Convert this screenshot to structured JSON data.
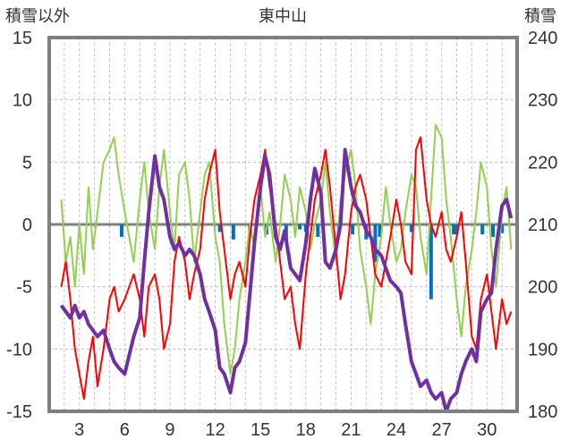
{
  "chart_data": {
    "type": "line",
    "title": "東中山",
    "left_axis_label": "積雪以外",
    "right_axis_label": "積雪",
    "left_ylim": [
      -15,
      15
    ],
    "left_yticks": [
      "15",
      "10",
      "5",
      "0",
      "-5",
      "-10",
      "-15"
    ],
    "right_ylim": [
      180,
      240
    ],
    "right_yticks": [
      "240",
      "230",
      "220",
      "210",
      "200",
      "190",
      "180"
    ],
    "x_range": [
      1,
      32
    ],
    "xticks": [
      "3",
      "6",
      "9",
      "12",
      "15",
      "18",
      "21",
      "24",
      "27",
      "30"
    ],
    "grid": true,
    "colors": {
      "frame": "#7f7f7f",
      "zero_line": "#7f7f7f",
      "grid": "#bfbfbf",
      "red": "#ff0000",
      "green": "#92d050",
      "purple": "#7030a0",
      "blue": "#0070c0"
    },
    "series": [
      {
        "axis": "left",
        "color": "#ff0000",
        "x": [
          1.8,
          2.1,
          2.4,
          2.7,
          3.0,
          3.3,
          3.6,
          3.9,
          4.2,
          4.6,
          5.0,
          5.3,
          5.6,
          6.0,
          6.3,
          6.6,
          7.0,
          7.3,
          7.6,
          8.0,
          8.3,
          8.6,
          9.0,
          9.3,
          9.6,
          10.0,
          10.3,
          10.6,
          11.0,
          11.3,
          11.6,
          12.0,
          12.3,
          12.6,
          13.0,
          13.3,
          13.6,
          14.0,
          14.3,
          14.6,
          15.0,
          15.3,
          15.6,
          16.0,
          16.3,
          16.6,
          17.0,
          17.3,
          17.6,
          18.0,
          18.3,
          18.6,
          19.0,
          19.3,
          19.6,
          20.0,
          20.3,
          20.6,
          21.0,
          21.3,
          21.6,
          22.0,
          22.3,
          22.6,
          23.0,
          23.3,
          23.6,
          24.0,
          24.3,
          24.6,
          25.0,
          25.3,
          25.6,
          26.0,
          26.3,
          26.6,
          27.0,
          27.3,
          27.6,
          28.0,
          28.3,
          28.6,
          29.0,
          29.3,
          29.6,
          30.0,
          30.3,
          30.6,
          31.0,
          31.3,
          31.6
        ],
        "values": [
          -5,
          -3,
          -6,
          -10,
          -12,
          -14,
          -11,
          -9,
          -13,
          -10,
          -6,
          -5,
          -7,
          -6,
          -5,
          -4,
          -6,
          -9,
          -5,
          -4,
          -6,
          -10,
          -8,
          -3,
          -1,
          -3,
          -6,
          -4,
          -2,
          2,
          4,
          6,
          1,
          -2,
          -6,
          -4,
          -3,
          -5,
          -1,
          2,
          4,
          6,
          3,
          0,
          -3,
          -6,
          -5,
          -8,
          -10,
          -4,
          -1,
          2,
          4,
          6,
          3,
          -2,
          -6,
          -4,
          1,
          3,
          4,
          2,
          -1,
          -4,
          -5,
          -3,
          -1,
          2,
          0,
          -3,
          -4,
          6,
          7,
          2,
          0,
          -1,
          1,
          -2,
          -3,
          -1,
          1,
          -3,
          -9,
          -10,
          -6,
          -4,
          -7,
          -10,
          -6,
          -8,
          -7
        ]
      },
      {
        "axis": "left",
        "color": "#92d050",
        "x": [
          1.8,
          2.1,
          2.4,
          2.7,
          3.0,
          3.3,
          3.6,
          3.9,
          4.2,
          4.6,
          5.0,
          5.3,
          5.6,
          6.0,
          6.3,
          6.6,
          7.0,
          7.3,
          7.6,
          8.0,
          8.3,
          8.6,
          9.0,
          9.3,
          9.6,
          10.0,
          10.3,
          10.6,
          11.0,
          11.3,
          11.6,
          12.0,
          12.3,
          12.6,
          13.0,
          13.3,
          13.6,
          14.0,
          14.3,
          14.6,
          15.0,
          15.3,
          15.6,
          16.0,
          16.3,
          16.6,
          17.0,
          17.3,
          17.6,
          18.0,
          18.3,
          18.6,
          19.0,
          19.3,
          19.6,
          20.0,
          20.3,
          20.6,
          21.0,
          21.3,
          21.6,
          22.0,
          22.3,
          22.6,
          23.0,
          23.3,
          23.6,
          24.0,
          24.3,
          24.6,
          25.0,
          25.3,
          25.6,
          26.0,
          26.3,
          26.6,
          27.0,
          27.3,
          27.6,
          28.0,
          28.3,
          28.6,
          29.0,
          29.3,
          29.6,
          30.0,
          30.3,
          30.6,
          31.0,
          31.3,
          31.6
        ],
        "values": [
          2,
          -3,
          -1,
          -5,
          0,
          -4,
          3,
          -2,
          1,
          5,
          6,
          7,
          4,
          1,
          -1,
          -3,
          2,
          5,
          1,
          -2,
          3,
          6,
          1,
          -2,
          4,
          5,
          2,
          -3,
          1,
          4,
          5,
          -1,
          -3,
          -8,
          -12,
          -10,
          -6,
          -3,
          0,
          -2,
          3,
          -1,
          1,
          -3,
          0,
          4,
          2,
          -1,
          3,
          1,
          -2,
          0,
          2,
          5,
          1,
          -3,
          2,
          4,
          6,
          3,
          -2,
          -5,
          -8,
          -4,
          -1,
          3,
          0,
          -3,
          -2,
          1,
          4,
          3,
          -1,
          -4,
          2,
          8,
          7,
          2,
          -1,
          -6,
          -9,
          -5,
          -2,
          1,
          5,
          3,
          -2,
          -5,
          1,
          3,
          -2
        ]
      },
      {
        "axis": "right",
        "color": "#7030a0",
        "x": [
          1.8,
          2.1,
          2.4,
          2.7,
          3.0,
          3.3,
          3.6,
          3.9,
          4.2,
          4.6,
          5.0,
          5.3,
          5.6,
          6.0,
          6.3,
          6.6,
          7.0,
          7.3,
          7.6,
          8.0,
          8.3,
          8.6,
          9.0,
          9.3,
          9.6,
          10.0,
          10.3,
          10.6,
          11.0,
          11.3,
          11.6,
          12.0,
          12.3,
          12.6,
          13.0,
          13.3,
          13.6,
          14.0,
          14.3,
          14.6,
          15.0,
          15.3,
          15.6,
          16.0,
          16.3,
          16.6,
          17.0,
          17.3,
          17.6,
          18.0,
          18.3,
          18.6,
          19.0,
          19.3,
          19.6,
          20.0,
          20.3,
          20.6,
          21.0,
          21.3,
          21.6,
          22.0,
          22.3,
          22.6,
          23.0,
          23.3,
          23.6,
          24.0,
          24.3,
          24.6,
          25.0,
          25.3,
          25.6,
          26.0,
          26.3,
          26.6,
          27.0,
          27.3,
          27.6,
          28.0,
          28.3,
          28.6,
          29.0,
          29.3,
          29.6,
          30.0,
          30.3,
          30.6,
          31.0,
          31.3,
          31.6
        ],
        "values": [
          197,
          196,
          195,
          197,
          195,
          196,
          194,
          193,
          192,
          193,
          190,
          188,
          187,
          186,
          189,
          192,
          195,
          204,
          212,
          221,
          216,
          214,
          208,
          206,
          207,
          205,
          206,
          205,
          202,
          198,
          196,
          193,
          187,
          186,
          183,
          187,
          188,
          191,
          199,
          207,
          216,
          221,
          218,
          208,
          206,
          209,
          203,
          202,
          201,
          207,
          214,
          219,
          215,
          204,
          203,
          206,
          210,
          222,
          216,
          213,
          212,
          209,
          208,
          206,
          205,
          203,
          201,
          200,
          199,
          194,
          188,
          186,
          184,
          185,
          183,
          182,
          183,
          180,
          182,
          183,
          186,
          188,
          190,
          188,
          196,
          198,
          199,
          206,
          213,
          214,
          211
        ]
      }
    ],
    "bars": {
      "axis": "left",
      "color": "#0070c0",
      "x": [
        5.8,
        12.3,
        13.2,
        14.3,
        15.4,
        16.7,
        17.6,
        18.0,
        18.8,
        20.2,
        21.1,
        22.0,
        22.6,
        22.9,
        25.0,
        26.3,
        27.8,
        28.0,
        29.7,
        30.4,
        31.0
      ],
      "values": [
        -1,
        -0.6,
        -1.2,
        -1,
        -0.8,
        -1.3,
        -0.4,
        -0.6,
        -1,
        -0.5,
        -0.8,
        -1.2,
        -3,
        -1,
        -0.6,
        -6,
        -0.8,
        -0.8,
        -0.8,
        -1,
        -0.7
      ]
    }
  }
}
